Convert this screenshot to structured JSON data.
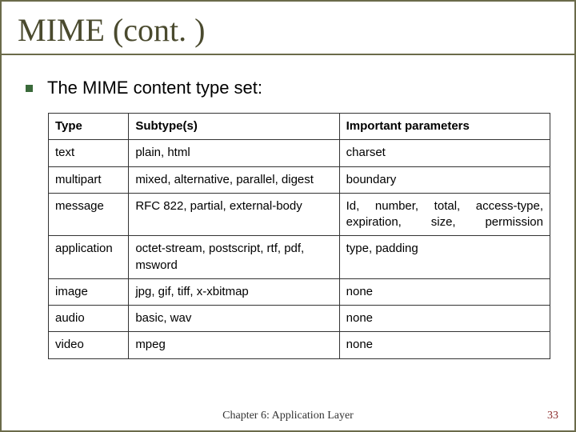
{
  "title": "MIME (cont. )",
  "bullet_text": "The MIME content type set:",
  "table": {
    "columns": [
      "Type",
      "Subtype(s)",
      "Important parameters"
    ],
    "rows": [
      {
        "type": "text",
        "subtype": "plain, html",
        "params": "charset",
        "justify": false
      },
      {
        "type": "multipart",
        "subtype": "mixed, alternative, parallel, digest",
        "params": "boundary",
        "justify": false
      },
      {
        "type": "message",
        "subtype": "RFC 822, partial, external-body",
        "params": "Id, number, total, access-type, expiration, size, permission",
        "justify": true
      },
      {
        "type": "application",
        "subtype": "octet-stream, postscript, rtf, pdf, msword",
        "params": "type, padding",
        "justify": false
      },
      {
        "type": "image",
        "subtype": "jpg, gif, tiff, x-xbitmap",
        "params": "none",
        "justify": false
      },
      {
        "type": "audio",
        "subtype": "basic, wav",
        "params": "none",
        "justify": false
      },
      {
        "type": "video",
        "subtype": "mpeg",
        "params": "none",
        "justify": false
      }
    ]
  },
  "footer": "Chapter 6: Application Layer",
  "page_number": "33",
  "colors": {
    "border": "#6b6b4a",
    "title": "#4a4a2e",
    "bullet": "#3a6a3a",
    "pagenum": "#8a2a2a"
  }
}
